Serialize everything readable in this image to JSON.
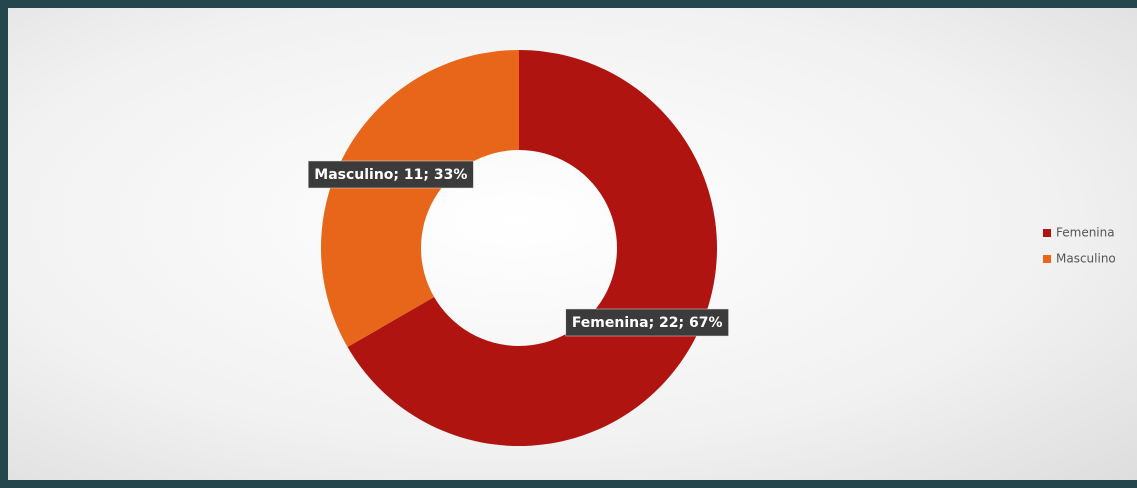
{
  "chart_data": {
    "type": "donut",
    "categories": [
      "Femenina",
      "Masculino"
    ],
    "values": [
      22,
      11
    ],
    "value_labels": [
      "Femenina; 22; 67%",
      "Masculino; 11; 33%"
    ],
    "colors": [
      "#b01410",
      "#e8661a"
    ],
    "legend": "right"
  }
}
